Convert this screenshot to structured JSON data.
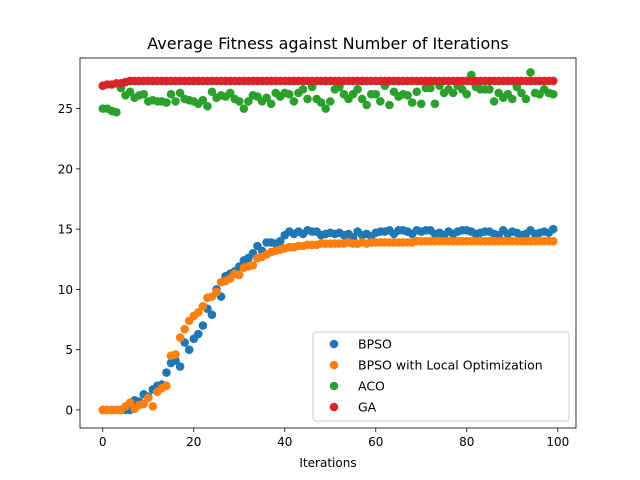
{
  "chart_data": {
    "type": "scatter",
    "title": "Average Fitness against Number of Iterations",
    "xlabel": "Iterations",
    "ylabel": "",
    "xlim": [
      -5,
      104
    ],
    "ylim": [
      -1.5,
      29.2
    ],
    "xticks": [
      0,
      20,
      40,
      60,
      80,
      100
    ],
    "yticks": [
      0,
      5,
      10,
      15,
      20,
      25
    ],
    "grid": false,
    "legend_position": "lower-right",
    "series": [
      {
        "name": "BPSO",
        "color": "#1f77b4",
        "x": [
          0,
          1,
          2,
          3,
          4,
          5,
          6,
          7,
          8,
          9,
          10,
          11,
          12,
          13,
          14,
          15,
          16,
          17,
          18,
          19,
          20,
          21,
          22,
          23,
          24,
          25,
          26,
          27,
          28,
          29,
          30,
          31,
          32,
          33,
          34,
          35,
          36,
          37,
          38,
          39,
          40,
          41,
          42,
          43,
          44,
          45,
          46,
          47,
          48,
          49,
          50,
          51,
          52,
          53,
          54,
          55,
          56,
          57,
          58,
          59,
          60,
          61,
          62,
          63,
          64,
          65,
          66,
          67,
          68,
          69,
          70,
          71,
          72,
          73,
          74,
          75,
          76,
          77,
          78,
          79,
          80,
          81,
          82,
          83,
          84,
          85,
          86,
          87,
          88,
          89,
          90,
          91,
          92,
          93,
          94,
          95,
          96,
          97,
          98,
          99
        ],
        "y": [
          0,
          0,
          0,
          0,
          0,
          0,
          0,
          0.8,
          0.7,
          1.3,
          1.1,
          1.7,
          2.0,
          2.1,
          3.1,
          3.9,
          4.1,
          3.6,
          5.6,
          5.0,
          5.9,
          6.3,
          7.0,
          8.4,
          7.9,
          10.0,
          9.4,
          11.1,
          11.3,
          11.5,
          11.9,
          12.4,
          12.6,
          13.0,
          13.6,
          13.2,
          13.9,
          13.9,
          13.8,
          14.0,
          14.5,
          14.8,
          14.6,
          14.8,
          14.6,
          14.9,
          14.8,
          14.8,
          14.5,
          14.6,
          14.7,
          14.6,
          14.7,
          14.5,
          14.6,
          14.3,
          14.8,
          14.5,
          14.6,
          14.4,
          14.7,
          14.8,
          14.8,
          14.9,
          14.6,
          14.9,
          14.9,
          14.8,
          14.6,
          14.9,
          14.8,
          14.9,
          14.9,
          14.6,
          14.7,
          14.5,
          14.8,
          14.6,
          14.8,
          14.9,
          14.9,
          14.8,
          14.6,
          14.7,
          14.8,
          14.8,
          14.6,
          14.5,
          14.9,
          14.6,
          14.8,
          14.7,
          14.5,
          14.6,
          14.9,
          14.6,
          14.7,
          14.8,
          14.7,
          15.0
        ]
      },
      {
        "name": "BPSO with Local Optimization",
        "color": "#ff7f0e",
        "x": [
          0,
          1,
          2,
          3,
          4,
          5,
          6,
          7,
          8,
          9,
          10,
          11,
          12,
          13,
          14,
          15,
          16,
          17,
          18,
          19,
          20,
          21,
          22,
          23,
          24,
          25,
          26,
          27,
          28,
          29,
          30,
          31,
          32,
          33,
          34,
          35,
          36,
          37,
          38,
          39,
          40,
          41,
          42,
          43,
          44,
          45,
          46,
          47,
          48,
          49,
          50,
          51,
          52,
          53,
          54,
          55,
          56,
          57,
          58,
          59,
          60,
          61,
          62,
          63,
          64,
          65,
          66,
          67,
          68,
          69,
          70,
          71,
          72,
          73,
          74,
          75,
          76,
          77,
          78,
          79,
          80,
          81,
          82,
          83,
          84,
          85,
          86,
          87,
          88,
          89,
          90,
          91,
          92,
          93,
          94,
          95,
          96,
          97,
          98,
          99
        ],
        "y": [
          0,
          0,
          0,
          0,
          0,
          0.3,
          0.6,
          0.1,
          0.4,
          0.5,
          1.0,
          0.3,
          1.5,
          1.8,
          2.0,
          4.5,
          4.6,
          6.0,
          6.7,
          7.4,
          7.8,
          8.1,
          8.6,
          9.3,
          9.4,
          9.8,
          10.6,
          10.7,
          10.9,
          11.3,
          11.2,
          11.8,
          11.9,
          12.0,
          12.6,
          12.7,
          12.9,
          13.1,
          13.2,
          13.3,
          13.4,
          13.5,
          13.5,
          13.6,
          13.6,
          13.7,
          13.7,
          13.7,
          13.8,
          13.8,
          13.8,
          13.8,
          13.8,
          13.8,
          13.9,
          13.8,
          13.8,
          13.9,
          13.8,
          13.9,
          13.9,
          13.9,
          13.9,
          13.9,
          13.9,
          13.9,
          13.9,
          13.9,
          13.9,
          14.0,
          14.0,
          14.0,
          14.0,
          14.0,
          14.0,
          14.0,
          14.0,
          14.0,
          14.0,
          14.0,
          14.0,
          14.0,
          14.0,
          14.0,
          14.0,
          14.0,
          14.0,
          14.0,
          14.0,
          14.0,
          14.0,
          14.0,
          14.0,
          14.0,
          14.0,
          14.0,
          14.0,
          14.0,
          14.0,
          14.0
        ]
      },
      {
        "name": "ACO",
        "color": "#2ca02c",
        "x": [
          0,
          1,
          2,
          3,
          4,
          5,
          6,
          7,
          8,
          9,
          10,
          11,
          12,
          13,
          14,
          15,
          16,
          17,
          18,
          19,
          20,
          21,
          22,
          23,
          24,
          25,
          26,
          27,
          28,
          29,
          30,
          31,
          32,
          33,
          34,
          35,
          36,
          37,
          38,
          39,
          40,
          41,
          42,
          43,
          44,
          45,
          46,
          47,
          48,
          49,
          50,
          51,
          52,
          53,
          54,
          55,
          56,
          57,
          58,
          59,
          60,
          61,
          62,
          63,
          64,
          65,
          66,
          67,
          68,
          69,
          70,
          71,
          72,
          73,
          74,
          75,
          76,
          77,
          78,
          79,
          80,
          81,
          82,
          83,
          84,
          85,
          86,
          87,
          88,
          89,
          90,
          91,
          92,
          93,
          94,
          95,
          96,
          97,
          98,
          99
        ],
        "y": [
          25.0,
          25.0,
          24.8,
          24.7,
          26.7,
          26.1,
          26.4,
          25.9,
          26.1,
          26.2,
          25.6,
          25.7,
          25.6,
          25.6,
          25.5,
          26.2,
          25.6,
          26.3,
          25.8,
          25.7,
          25.6,
          25.4,
          25.7,
          25.2,
          26.4,
          25.9,
          26.1,
          26.0,
          26.3,
          25.8,
          25.6,
          25.0,
          25.6,
          26.1,
          26.0,
          25.6,
          25.9,
          25.4,
          26.3,
          26.0,
          26.3,
          26.2,
          25.6,
          26.3,
          26.6,
          25.8,
          26.8,
          25.8,
          25.5,
          25.0,
          25.6,
          26.6,
          26.8,
          26.2,
          25.8,
          26.2,
          26.6,
          25.8,
          25.3,
          26.2,
          26.2,
          25.6,
          26.9,
          25.3,
          26.4,
          26.0,
          26.2,
          26.1,
          25.5,
          26.4,
          25.4,
          26.7,
          26.7,
          25.4,
          26.9,
          26.3,
          26.6,
          26.3,
          26.9,
          26.6,
          26.2,
          27.8,
          26.8,
          26.6,
          26.6,
          26.6,
          25.6,
          26.3,
          25.9,
          26.2,
          25.8,
          26.8,
          26.3,
          25.8,
          28.0,
          26.3,
          26.2,
          26.6,
          26.3,
          26.2
        ]
      },
      {
        "name": "GA",
        "color": "#d62728",
        "x": [
          0,
          1,
          2,
          3,
          4,
          5,
          6,
          7,
          8,
          9,
          10,
          11,
          12,
          13,
          14,
          15,
          16,
          17,
          18,
          19,
          20,
          21,
          22,
          23,
          24,
          25,
          26,
          27,
          28,
          29,
          30,
          31,
          32,
          33,
          34,
          35,
          36,
          37,
          38,
          39,
          40,
          41,
          42,
          43,
          44,
          45,
          46,
          47,
          48,
          49,
          50,
          51,
          52,
          53,
          54,
          55,
          56,
          57,
          58,
          59,
          60,
          61,
          62,
          63,
          64,
          65,
          66,
          67,
          68,
          69,
          70,
          71,
          72,
          73,
          74,
          75,
          76,
          77,
          78,
          79,
          80,
          81,
          82,
          83,
          84,
          85,
          86,
          87,
          88,
          89,
          90,
          91,
          92,
          93,
          94,
          95,
          96,
          97,
          98,
          99
        ],
        "y": [
          26.9,
          27.0,
          27.0,
          27.1,
          27.1,
          27.2,
          27.3,
          27.3,
          27.3,
          27.3,
          27.3,
          27.3,
          27.3,
          27.3,
          27.3,
          27.3,
          27.3,
          27.3,
          27.3,
          27.3,
          27.3,
          27.3,
          27.3,
          27.3,
          27.3,
          27.3,
          27.3,
          27.3,
          27.3,
          27.3,
          27.3,
          27.3,
          27.3,
          27.3,
          27.3,
          27.3,
          27.3,
          27.3,
          27.3,
          27.3,
          27.3,
          27.3,
          27.3,
          27.3,
          27.3,
          27.3,
          27.3,
          27.3,
          27.3,
          27.3,
          27.3,
          27.3,
          27.3,
          27.3,
          27.3,
          27.3,
          27.3,
          27.3,
          27.3,
          27.3,
          27.3,
          27.3,
          27.3,
          27.3,
          27.3,
          27.3,
          27.3,
          27.3,
          27.3,
          27.3,
          27.3,
          27.3,
          27.3,
          27.3,
          27.3,
          27.3,
          27.3,
          27.3,
          27.3,
          27.3,
          27.3,
          27.3,
          27.3,
          27.3,
          27.3,
          27.3,
          27.3,
          27.3,
          27.3,
          27.3,
          27.3,
          27.3,
          27.3,
          27.3,
          27.3,
          27.3,
          27.3,
          27.3,
          27.3,
          27.3
        ]
      }
    ]
  }
}
